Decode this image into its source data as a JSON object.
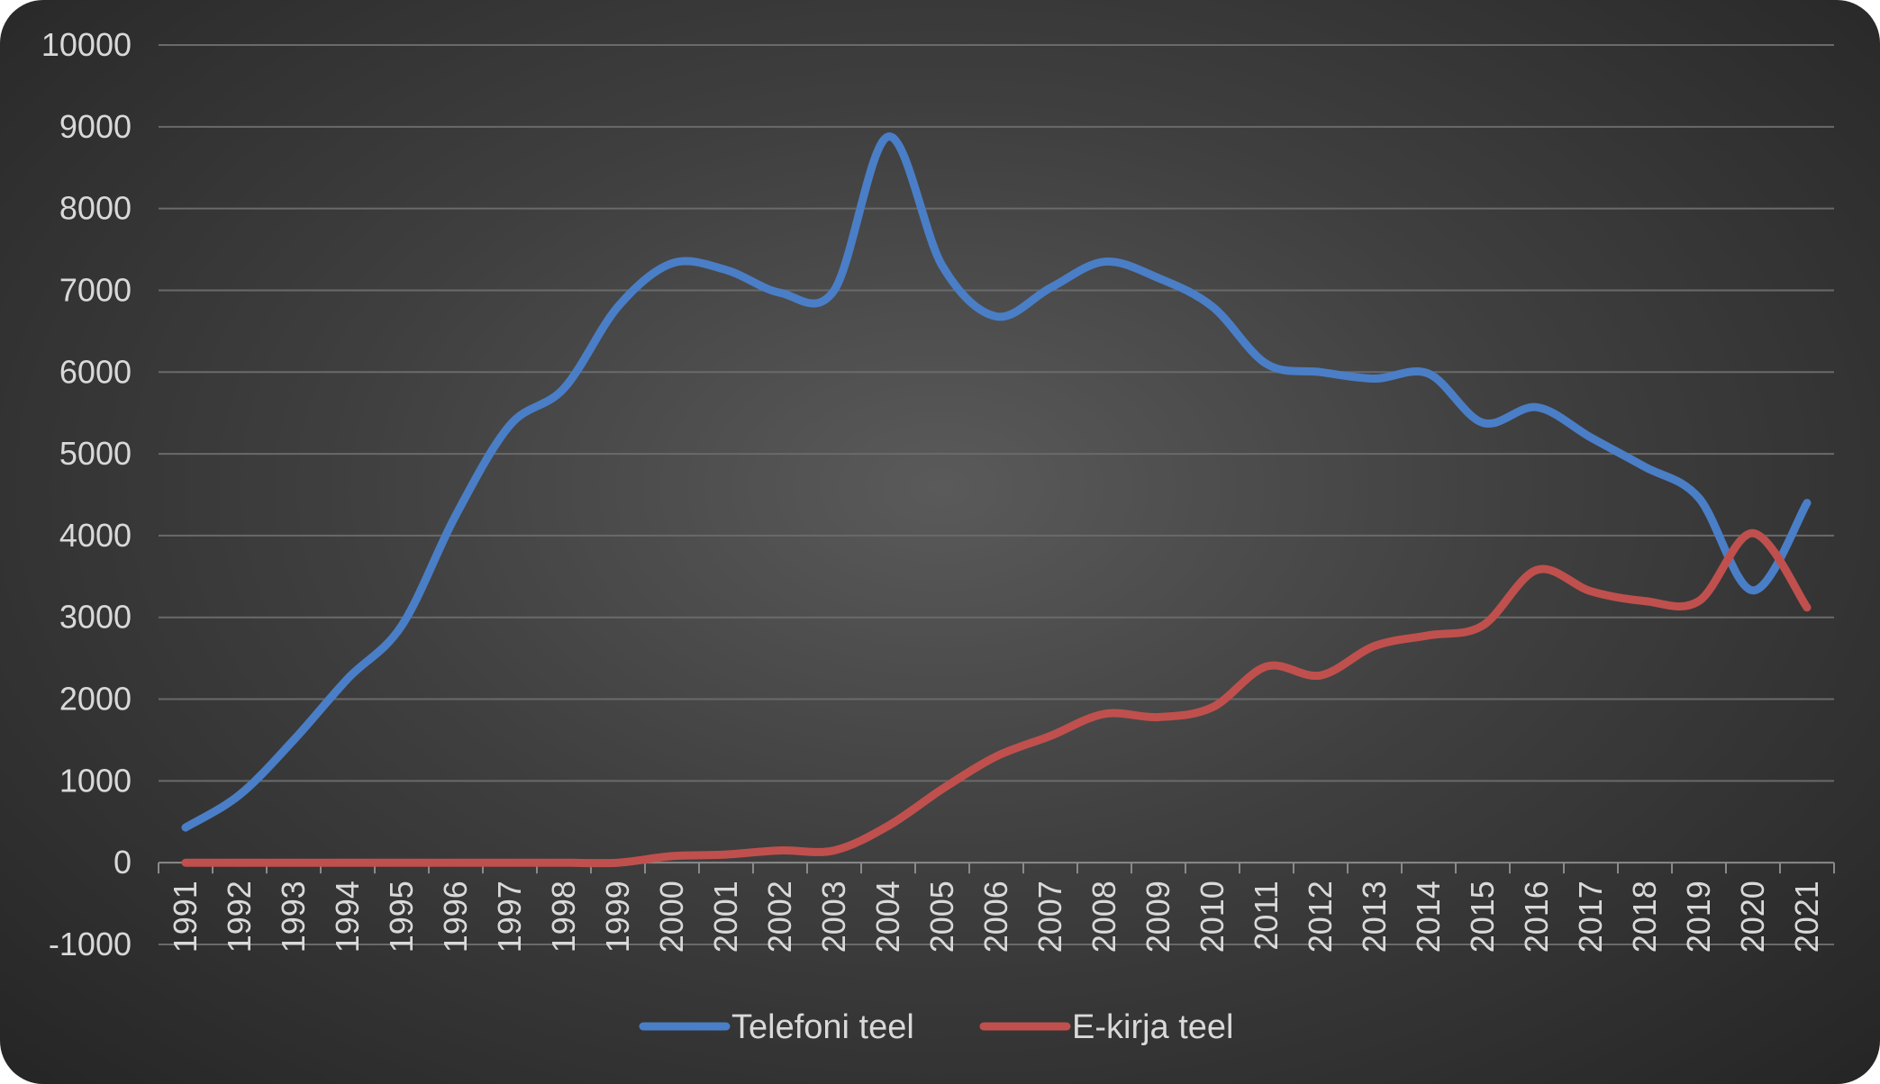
{
  "chart_data": {
    "type": "line",
    "title": "",
    "xlabel": "",
    "ylabel": "",
    "ylim": [
      -1000,
      10000
    ],
    "y_ticks": [
      -1000,
      0,
      1000,
      2000,
      3000,
      4000,
      5000,
      6000,
      7000,
      8000,
      9000,
      10000
    ],
    "grid": true,
    "smooth": true,
    "legend_position": "bottom",
    "categories": [
      "1991",
      "1992",
      "1993",
      "1994",
      "1995",
      "1996",
      "1997",
      "1998",
      "1999",
      "2000",
      "2001",
      "2002",
      "2003",
      "2004",
      "2005",
      "2006",
      "2007",
      "2008",
      "2009",
      "2010",
      "2011",
      "2012",
      "2013",
      "2014",
      "2015",
      "2016",
      "2017",
      "2018",
      "2019",
      "2020",
      "2021"
    ],
    "series": [
      {
        "name": "Telefoni teel",
        "color": "#4a7ec7",
        "values": [
          430,
          830,
          1500,
          2250,
          2900,
          4250,
          5350,
          5800,
          6800,
          7330,
          7250,
          6970,
          7000,
          8880,
          7300,
          6680,
          7030,
          7350,
          7150,
          6800,
          6100,
          6000,
          5920,
          5980,
          5380,
          5570,
          5200,
          4840,
          4460,
          3330,
          4400
        ]
      },
      {
        "name": "E-kirja teel",
        "color": "#c0504d",
        "values": [
          0,
          0,
          0,
          0,
          0,
          0,
          0,
          0,
          0,
          80,
          100,
          150,
          150,
          450,
          900,
          1300,
          1550,
          1820,
          1780,
          1900,
          2400,
          2290,
          2650,
          2780,
          2900,
          3580,
          3320,
          3200,
          3200,
          4030,
          3120
        ]
      }
    ]
  }
}
